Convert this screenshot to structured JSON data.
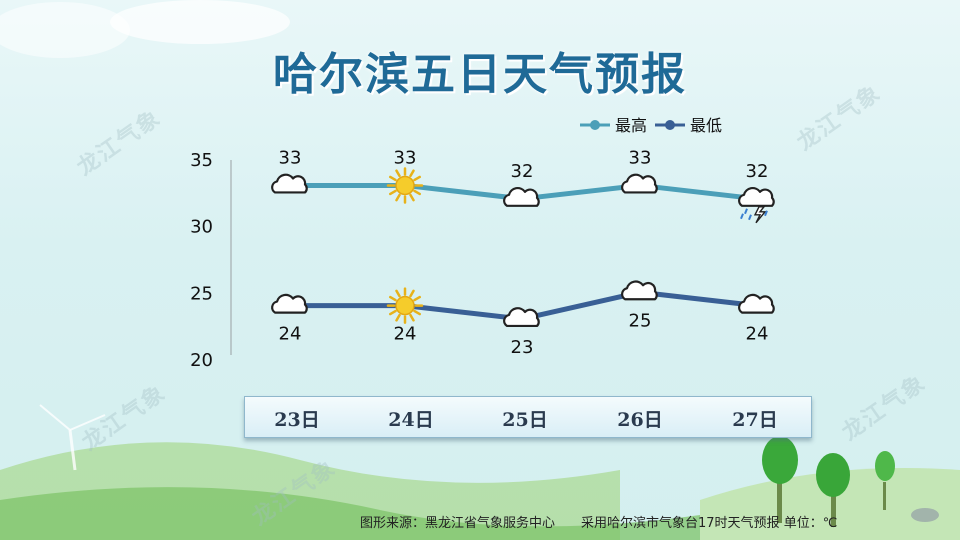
{
  "title": "哈尔滨五日天气预报",
  "watermark": "龙江气象",
  "footer": {
    "source": "图形来源：黑龙江省气象服务中心",
    "note": "采用哈尔滨市气象台17时天气预报 单位：℃"
  },
  "days": [
    "23日",
    "24日",
    "25日",
    "26日",
    "27日"
  ],
  "icons": {
    "high": [
      "cloud-icon",
      "sun-icon",
      "cloud-icon",
      "cloud-icon",
      "thunderstorm-icon"
    ],
    "low": [
      "cloud-icon",
      "sun-icon",
      "cloud-icon",
      "cloud-icon",
      "cloud-icon"
    ]
  },
  "chart_data": {
    "type": "line",
    "categories": [
      "23日",
      "24日",
      "25日",
      "26日",
      "27日"
    ],
    "series": [
      {
        "name": "最高",
        "values": [
          33,
          33,
          32,
          33,
          32
        ],
        "color": "#4b9fb8"
      },
      {
        "name": "最低",
        "values": [
          24,
          24,
          23,
          25,
          24
        ],
        "color": "#395f95"
      }
    ],
    "y_ticks": [
      20,
      25,
      30,
      35
    ],
    "ylim": [
      20,
      35
    ],
    "grid": false,
    "legend": "top-right",
    "data_labels": true
  }
}
